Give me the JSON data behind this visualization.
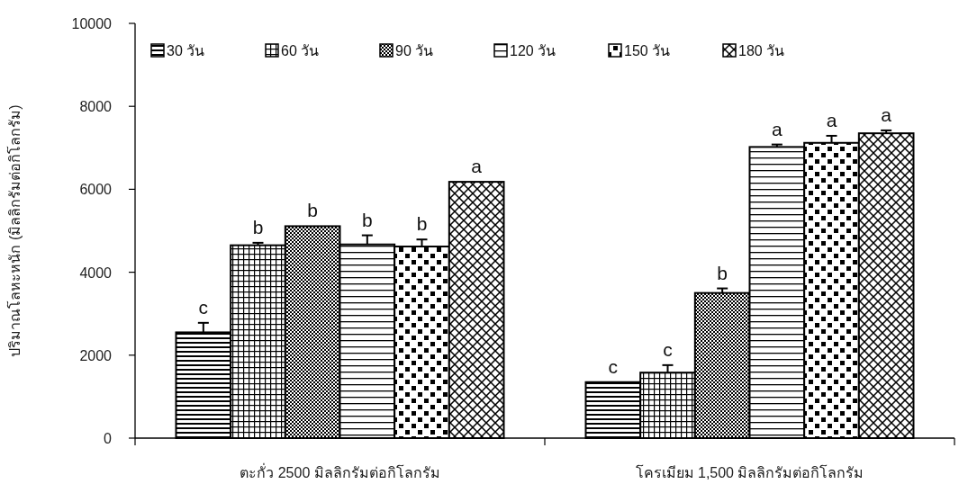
{
  "chart_data": {
    "type": "bar",
    "categories": [
      "ตะกั่ว 2500 มิลลิกรัมต่อกิโลกรัม",
      "โครเมียม 1,500 มิลลิกรัมต่อกิโลกรัม"
    ],
    "ylabel": "ปริมาณโลหะหนัก (มิลลิกรัมต่อกิโลกรัม)",
    "ylim": [
      0,
      10000
    ],
    "yticks": [
      0,
      2000,
      4000,
      6000,
      8000,
      10000
    ],
    "legend": "top left",
    "grid": false,
    "series": [
      {
        "name": "30 วัน",
        "color": "#000000",
        "values": [
          2550,
          1350
        ],
        "errors": [
          [
            2550,
            2780
          ],
          null
        ],
        "value_labels": [
          "c",
          "c"
        ]
      },
      {
        "name": "60 วัน",
        "color": "#000000",
        "values": [
          4650,
          1580
        ],
        "errors": [
          [
            4650,
            4710
          ],
          [
            1580,
            1760
          ]
        ],
        "value_labels": [
          "b",
          "c"
        ]
      },
      {
        "name": "90 วัน",
        "color": "#000000",
        "values": [
          5110,
          3500
        ],
        "errors": [
          null,
          [
            3500,
            3610
          ]
        ],
        "value_labels": [
          "b",
          "b"
        ]
      },
      {
        "name": "120 วัน",
        "color": "#000000",
        "values": [
          4670,
          7020
        ],
        "errors": [
          [
            4670,
            4890
          ],
          [
            7020,
            7080
          ]
        ],
        "value_labels": [
          "b",
          "a"
        ]
      },
      {
        "name": "150 วัน",
        "color": "#000000",
        "values": [
          4620,
          7120
        ],
        "errors": [
          [
            4620,
            4790
          ],
          [
            7120,
            7290
          ]
        ],
        "value_labels": [
          "b",
          "a"
        ]
      },
      {
        "name": "180 วัน",
        "color": "#000000",
        "values": [
          6180,
          7350
        ],
        "errors": [
          null,
          [
            7350,
            7420
          ]
        ],
        "value_labels": [
          "a",
          "a"
        ]
      }
    ]
  }
}
